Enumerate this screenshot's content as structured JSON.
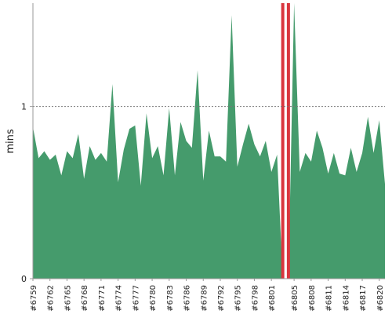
{
  "chart_data": {
    "type": "area",
    "title": "",
    "xlabel": "",
    "ylabel": "mins",
    "ylim": [
      0,
      1.6
    ],
    "yticks": [
      0,
      1
    ],
    "threshold_line": 1,
    "grid": false,
    "colors": {
      "failure": "#d9363e",
      "reference_line": "#777777",
      "success": "#459b6c"
    },
    "x": [
      6759,
      6760,
      6761,
      6762,
      6763,
      6764,
      6765,
      6766,
      6767,
      6768,
      6769,
      6770,
      6771,
      6772,
      6773,
      6774,
      6775,
      6776,
      6777,
      6778,
      6779,
      6780,
      6781,
      6782,
      6783,
      6784,
      6785,
      6786,
      6787,
      6788,
      6789,
      6790,
      6791,
      6792,
      6793,
      6794,
      6795,
      6796,
      6797,
      6798,
      6799,
      6800,
      6801,
      6802,
      6803,
      6804,
      6805,
      6806,
      6807,
      6808,
      6809,
      6810,
      6811,
      6812,
      6813,
      6814,
      6815,
      6816,
      6817,
      6818,
      6819,
      6820,
      6821
    ],
    "x_tick_labels": [
      "#6759",
      "#6762",
      "#6765",
      "#6768",
      "#6771",
      "#6774",
      "#6777",
      "#6780",
      "#6783",
      "#6786",
      "#6789",
      "#6792",
      "#6795",
      "#6798",
      "#6801",
      "#6805",
      "#6808",
      "#6811",
      "#6814",
      "#6817",
      "#6820"
    ],
    "series": [
      {
        "status": "success",
        "values": [
          0.88,
          0.7,
          0.74,
          0.69,
          0.72,
          0.6,
          0.74,
          0.7,
          0.84,
          0.58,
          0.77,
          0.69,
          0.73,
          0.68,
          1.13,
          0.56,
          0.75,
          0.87,
          0.89,
          0.54,
          0.96,
          0.7,
          0.77,
          0.6,
          0.99,
          0.6,
          0.91,
          0.8,
          0.76,
          1.21,
          0.57,
          0.86,
          0.71,
          0.71,
          0.68,
          1.53,
          0.65,
          0.78,
          0.9,
          0.78,
          0.71,
          0.8,
          0.62,
          0.72,
          0.0,
          0.0,
          1.6,
          0.62,
          0.73,
          0.68,
          0.86,
          0.76,
          0.61,
          0.73,
          0.61,
          0.6,
          0.76,
          0.62,
          0.73,
          0.94,
          0.73,
          0.92,
          0.55
        ]
      }
    ],
    "failed_builds": [
      6803,
      6804
    ]
  }
}
